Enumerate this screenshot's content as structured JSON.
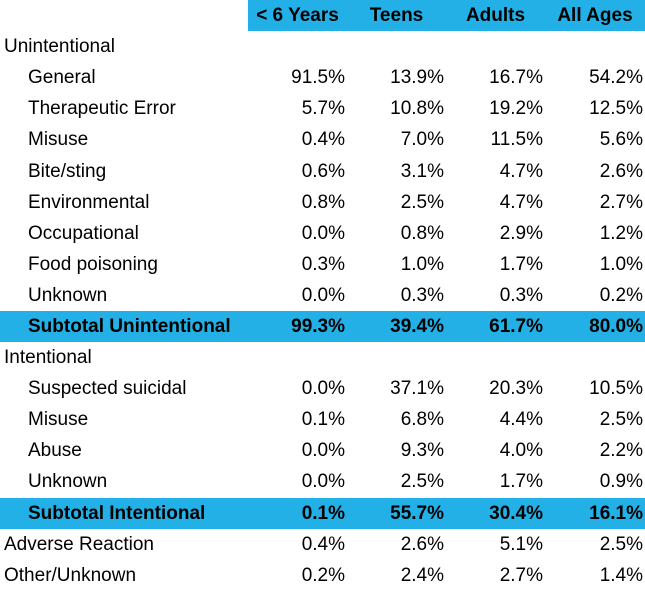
{
  "chart_data": {
    "type": "table",
    "columns": [
      "< 6 Years",
      "Teens",
      "Adults",
      "All Ages"
    ],
    "rows": [
      {
        "kind": "group",
        "label": "Unintentional",
        "values": [
          "",
          "",
          "",
          ""
        ]
      },
      {
        "kind": "item",
        "label": "General",
        "values": [
          "91.5%",
          "13.9%",
          "16.7%",
          "54.2%"
        ]
      },
      {
        "kind": "item",
        "label": "Therapeutic Error",
        "values": [
          "5.7%",
          "10.8%",
          "19.2%",
          "12.5%"
        ]
      },
      {
        "kind": "item",
        "label": "Misuse",
        "values": [
          "0.4%",
          "7.0%",
          "11.5%",
          "5.6%"
        ]
      },
      {
        "kind": "item",
        "label": "Bite/sting",
        "values": [
          "0.6%",
          "3.1%",
          "4.7%",
          "2.6%"
        ]
      },
      {
        "kind": "item",
        "label": "Environmental",
        "values": [
          "0.8%",
          "2.5%",
          "4.7%",
          "2.7%"
        ]
      },
      {
        "kind": "item",
        "label": "Occupational",
        "values": [
          "0.0%",
          "0.8%",
          "2.9%",
          "1.2%"
        ]
      },
      {
        "kind": "item",
        "label": "Food poisoning",
        "values": [
          "0.3%",
          "1.0%",
          "1.7%",
          "1.0%"
        ]
      },
      {
        "kind": "item",
        "label": "Unknown",
        "values": [
          "0.0%",
          "0.3%",
          "0.3%",
          "0.2%"
        ]
      },
      {
        "kind": "subtotal",
        "label": "Subtotal Unintentional",
        "values": [
          "99.3%",
          "39.4%",
          "61.7%",
          "80.0%"
        ]
      },
      {
        "kind": "group",
        "label": "Intentional",
        "values": [
          "",
          "",
          "",
          ""
        ]
      },
      {
        "kind": "item",
        "label": "Suspected suicidal",
        "values": [
          "0.0%",
          "37.1%",
          "20.3%",
          "10.5%"
        ]
      },
      {
        "kind": "item",
        "label": "Misuse",
        "values": [
          "0.1%",
          "6.8%",
          "4.4%",
          "2.5%"
        ]
      },
      {
        "kind": "item",
        "label": "Abuse",
        "values": [
          "0.0%",
          "9.3%",
          "4.0%",
          "2.2%"
        ]
      },
      {
        "kind": "item",
        "label": "Unknown",
        "values": [
          "0.0%",
          "2.5%",
          "1.7%",
          "0.9%"
        ]
      },
      {
        "kind": "subtotal",
        "label": "Subtotal Intentional",
        "values": [
          "0.1%",
          "55.7%",
          "30.4%",
          "16.1%"
        ]
      },
      {
        "kind": "top",
        "label": "Adverse Reaction",
        "values": [
          "0.4%",
          "2.6%",
          "5.1%",
          "2.5%"
        ]
      },
      {
        "kind": "top",
        "label": "Other/Unknown",
        "values": [
          "0.2%",
          "2.4%",
          "2.7%",
          "1.4%"
        ]
      }
    ],
    "header_color": "#22b0e6",
    "subtotal_color": "#22b0e6"
  }
}
